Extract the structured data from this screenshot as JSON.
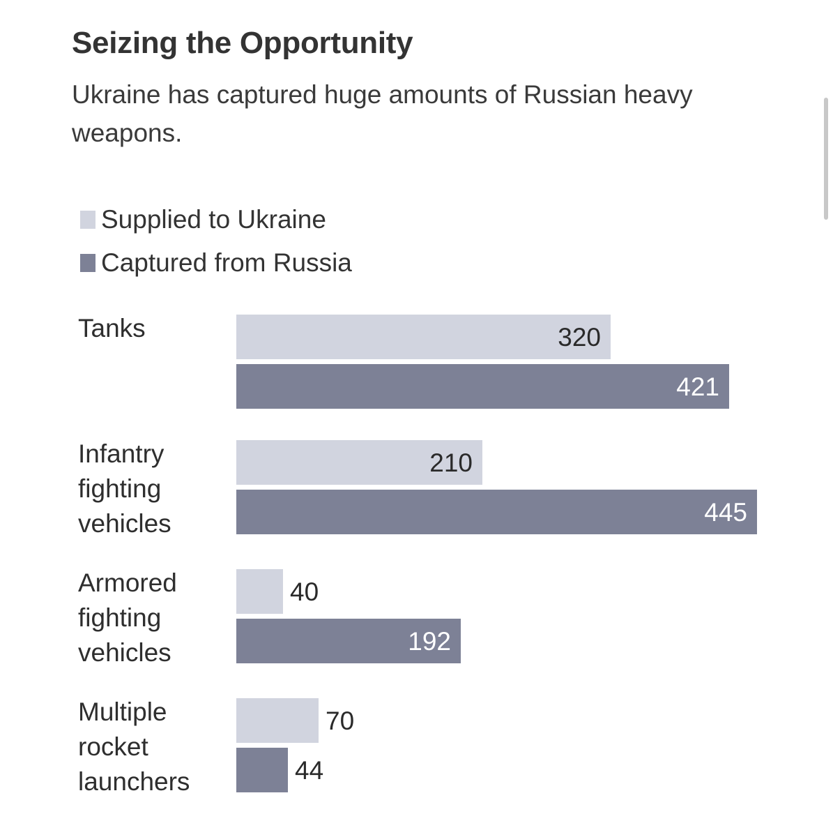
{
  "colors": {
    "supplied": "#d1d4df",
    "captured": "#7d8196",
    "label_dark": "#2a2a2a",
    "label_light": "#ffffff"
  },
  "chart_data": {
    "type": "bar",
    "orientation": "horizontal",
    "title": "Seizing the Opportunity",
    "subtitle": "Ukraine has captured huge amounts of Russian heavy weapons.",
    "categories": [
      [
        "Tanks"
      ],
      [
        "Infantry",
        "fighting",
        "vehicles"
      ],
      [
        "Armored",
        "fighting",
        "vehicles"
      ],
      [
        "Multiple",
        "rocket",
        "launchers"
      ]
    ],
    "series": [
      {
        "name": "Supplied to Ukraine",
        "values": [
          320,
          210,
          40,
          70
        ]
      },
      {
        "name": "Captured from Russia",
        "values": [
          421,
          445,
          192,
          44
        ]
      }
    ],
    "xlim": [
      0,
      445
    ],
    "grid": false,
    "legend": "top-left"
  }
}
